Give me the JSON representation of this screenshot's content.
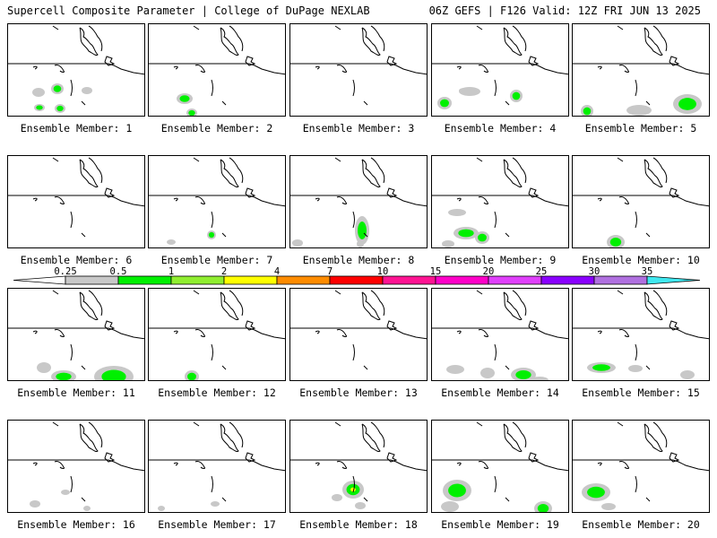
{
  "header": {
    "title_left": "Supercell Composite Parameter | College of DuPage NEXLAB",
    "title_right": "06Z GEFS | F126 Valid: 12Z FRI JUN 13 2025"
  },
  "panels": [
    {
      "label": "Ensemble Member: 1"
    },
    {
      "label": "Ensemble Member: 2"
    },
    {
      "label": "Ensemble Member: 3"
    },
    {
      "label": "Ensemble Member: 4"
    },
    {
      "label": "Ensemble Member: 5"
    },
    {
      "label": "Ensemble Member: 6"
    },
    {
      "label": "Ensemble Member: 7"
    },
    {
      "label": "Ensemble Member: 8"
    },
    {
      "label": "Ensemble Member: 9"
    },
    {
      "label": "Ensemble Member: 10"
    },
    {
      "label": "Ensemble Member: 11"
    },
    {
      "label": "Ensemble Member: 12"
    },
    {
      "label": "Ensemble Member: 13"
    },
    {
      "label": "Ensemble Member: 14"
    },
    {
      "label": "Ensemble Member: 15"
    },
    {
      "label": "Ensemble Member: 16"
    },
    {
      "label": "Ensemble Member: 17"
    },
    {
      "label": "Ensemble Member: 18"
    },
    {
      "label": "Ensemble Member: 19"
    },
    {
      "label": "Ensemble Member: 20"
    }
  ],
  "colorbar": {
    "labels": [
      "0.25",
      "0.5",
      "1",
      "2",
      "4",
      "7",
      "10",
      "15",
      "20",
      "25",
      "30",
      "35"
    ],
    "colors": [
      "#c8c8c8",
      "#00f000",
      "#90ee30",
      "#ffff00",
      "#ff8c00",
      "#ff0000",
      "#ff1493",
      "#ff00c8",
      "#e040fb",
      "#8a00ff",
      "#b070e0",
      "#40e8f0"
    ]
  }
}
